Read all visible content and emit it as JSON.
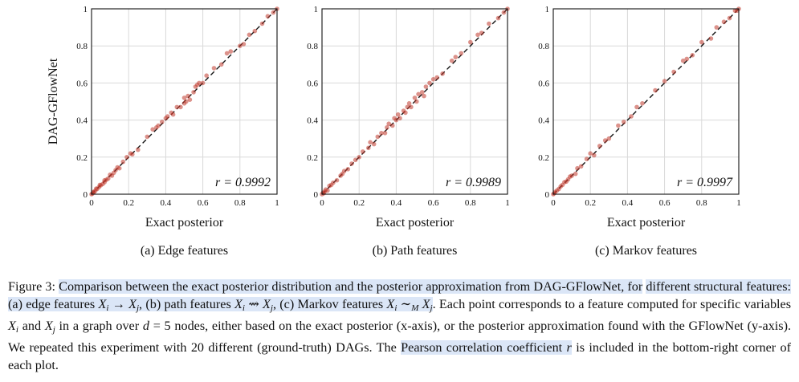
{
  "chart_data": [
    {
      "type": "scatter",
      "caption": "(a) Edge features",
      "xlabel": "Exact posterior",
      "ylabel": "DAG-GFlowNet",
      "xlim": [
        0,
        1
      ],
      "ylim": [
        0,
        1
      ],
      "x_ticks": [
        "0",
        "0.2",
        "0.4",
        "0.6",
        "0.8",
        "1"
      ],
      "y_ticks": [
        "0",
        "0.2",
        "0.4",
        "0.6",
        "0.8",
        "1"
      ],
      "grid": true,
      "r_label": "r = 0.9992",
      "color": "#c0392b",
      "points": [
        [
          0.0,
          0.0
        ],
        [
          0.005,
          0.004
        ],
        [
          0.01,
          0.012
        ],
        [
          0.012,
          0.01
        ],
        [
          0.02,
          0.018
        ],
        [
          0.025,
          0.03
        ],
        [
          0.03,
          0.028
        ],
        [
          0.04,
          0.038
        ],
        [
          0.045,
          0.05
        ],
        [
          0.05,
          0.048
        ],
        [
          0.06,
          0.055
        ],
        [
          0.07,
          0.075
        ],
        [
          0.08,
          0.078
        ],
        [
          0.09,
          0.085
        ],
        [
          0.1,
          0.105
        ],
        [
          0.11,
          0.1
        ],
        [
          0.12,
          0.115
        ],
        [
          0.13,
          0.13
        ],
        [
          0.14,
          0.145
        ],
        [
          0.15,
          0.14
        ],
        [
          0.17,
          0.175
        ],
        [
          0.19,
          0.2
        ],
        [
          0.21,
          0.22
        ],
        [
          0.22,
          0.215
        ],
        [
          0.25,
          0.24
        ],
        [
          0.3,
          0.31
        ],
        [
          0.33,
          0.35
        ],
        [
          0.35,
          0.36
        ],
        [
          0.36,
          0.37
        ],
        [
          0.38,
          0.39
        ],
        [
          0.4,
          0.41
        ],
        [
          0.41,
          0.42
        ],
        [
          0.43,
          0.44
        ],
        [
          0.44,
          0.43
        ],
        [
          0.46,
          0.47
        ],
        [
          0.48,
          0.47
        ],
        [
          0.5,
          0.49
        ],
        [
          0.5,
          0.52
        ],
        [
          0.51,
          0.5
        ],
        [
          0.52,
          0.53
        ],
        [
          0.53,
          0.51
        ],
        [
          0.55,
          0.55
        ],
        [
          0.56,
          0.58
        ],
        [
          0.57,
          0.59
        ],
        [
          0.58,
          0.6
        ],
        [
          0.6,
          0.6
        ],
        [
          0.62,
          0.64
        ],
        [
          0.66,
          0.68
        ],
        [
          0.7,
          0.7
        ],
        [
          0.73,
          0.76
        ],
        [
          0.75,
          0.77
        ],
        [
          0.8,
          0.8
        ],
        [
          0.82,
          0.81
        ],
        [
          0.85,
          0.86
        ],
        [
          0.88,
          0.88
        ],
        [
          0.92,
          0.92
        ],
        [
          0.95,
          0.96
        ],
        [
          0.98,
          0.98
        ],
        [
          1.0,
          1.0
        ],
        [
          0.07,
          0.065
        ]
      ]
    },
    {
      "type": "scatter",
      "caption": "(b) Path features",
      "xlabel": "Exact posterior",
      "ylabel": "",
      "xlim": [
        0,
        1
      ],
      "ylim": [
        0,
        1
      ],
      "x_ticks": [
        "0",
        "0.2",
        "0.4",
        "0.6",
        "0.8",
        "1"
      ],
      "y_ticks": [
        "0",
        "0.2",
        "0.4",
        "0.6",
        "0.8",
        "1"
      ],
      "grid": true,
      "r_label": "r = 0.9989",
      "color": "#c0392b",
      "points": [
        [
          0.0,
          0.0
        ],
        [
          0.005,
          0.008
        ],
        [
          0.01,
          0.005
        ],
        [
          0.015,
          0.015
        ],
        [
          0.02,
          0.025
        ],
        [
          0.03,
          0.02
        ],
        [
          0.04,
          0.045
        ],
        [
          0.05,
          0.05
        ],
        [
          0.06,
          0.062
        ],
        [
          0.08,
          0.075
        ],
        [
          0.1,
          0.1
        ],
        [
          0.12,
          0.125
        ],
        [
          0.14,
          0.135
        ],
        [
          0.16,
          0.165
        ],
        [
          0.18,
          0.185
        ],
        [
          0.2,
          0.2
        ],
        [
          0.22,
          0.23
        ],
        [
          0.25,
          0.25
        ],
        [
          0.28,
          0.27
        ],
        [
          0.3,
          0.31
        ],
        [
          0.32,
          0.33
        ],
        [
          0.34,
          0.33
        ],
        [
          0.35,
          0.36
        ],
        [
          0.36,
          0.38
        ],
        [
          0.38,
          0.37
        ],
        [
          0.39,
          0.41
        ],
        [
          0.4,
          0.4
        ],
        [
          0.41,
          0.43
        ],
        [
          0.42,
          0.41
        ],
        [
          0.44,
          0.45
        ],
        [
          0.45,
          0.44
        ],
        [
          0.47,
          0.49
        ],
        [
          0.48,
          0.47
        ],
        [
          0.5,
          0.52
        ],
        [
          0.51,
          0.5
        ],
        [
          0.52,
          0.54
        ],
        [
          0.54,
          0.55
        ],
        [
          0.56,
          0.58
        ],
        [
          0.58,
          0.6
        ],
        [
          0.6,
          0.62
        ],
        [
          0.62,
          0.63
        ],
        [
          0.65,
          0.65
        ],
        [
          0.7,
          0.72
        ],
        [
          0.72,
          0.74
        ],
        [
          0.75,
          0.76
        ],
        [
          0.8,
          0.82
        ],
        [
          0.84,
          0.86
        ],
        [
          0.86,
          0.87
        ],
        [
          0.9,
          0.92
        ],
        [
          0.95,
          0.95
        ],
        [
          0.98,
          0.98
        ],
        [
          1.0,
          1.0
        ],
        [
          0.11,
          0.11
        ],
        [
          0.26,
          0.28
        ],
        [
          0.46,
          0.47
        ],
        [
          0.55,
          0.53
        ]
      ]
    },
    {
      "type": "scatter",
      "caption": "(c) Markov features",
      "xlabel": "Exact posterior",
      "ylabel": "",
      "xlim": [
        0,
        1
      ],
      "ylim": [
        0,
        1
      ],
      "x_ticks": [
        "0",
        "0.2",
        "0.4",
        "0.6",
        "0.8",
        "1"
      ],
      "y_ticks": [
        "0",
        "0.2",
        "0.4",
        "0.6",
        "0.8",
        "1"
      ],
      "grid": true,
      "r_label": "r = 0.9997",
      "color": "#c0392b",
      "points": [
        [
          0.0,
          0.0
        ],
        [
          0.005,
          0.005
        ],
        [
          0.01,
          0.012
        ],
        [
          0.02,
          0.02
        ],
        [
          0.03,
          0.028
        ],
        [
          0.04,
          0.042
        ],
        [
          0.05,
          0.05
        ],
        [
          0.06,
          0.065
        ],
        [
          0.07,
          0.068
        ],
        [
          0.08,
          0.08
        ],
        [
          0.09,
          0.095
        ],
        [
          0.1,
          0.1
        ],
        [
          0.12,
          0.11
        ],
        [
          0.13,
          0.14
        ],
        [
          0.15,
          0.15
        ],
        [
          0.18,
          0.19
        ],
        [
          0.2,
          0.22
        ],
        [
          0.22,
          0.21
        ],
        [
          0.25,
          0.26
        ],
        [
          0.28,
          0.29
        ],
        [
          0.3,
          0.3
        ],
        [
          0.35,
          0.37
        ],
        [
          0.38,
          0.39
        ],
        [
          0.42,
          0.42
        ],
        [
          0.45,
          0.47
        ],
        [
          0.48,
          0.49
        ],
        [
          0.55,
          0.56
        ],
        [
          0.6,
          0.61
        ],
        [
          0.65,
          0.66
        ],
        [
          0.7,
          0.72
        ],
        [
          0.72,
          0.73
        ],
        [
          0.75,
          0.75
        ],
        [
          0.8,
          0.82
        ],
        [
          0.85,
          0.84
        ],
        [
          0.88,
          0.9
        ],
        [
          0.92,
          0.93
        ],
        [
          0.95,
          0.95
        ],
        [
          0.98,
          0.99
        ],
        [
          1.0,
          1.0
        ],
        [
          0.99,
          0.99
        ]
      ]
    }
  ],
  "caption": {
    "figure_label": "Figure 3:",
    "line1_hl": "Comparison between the exact posterior distribution and the posterior approximation from DAG-GFlowNet, for",
    "line2_hl": "different structural features: (a) edge features ",
    "line2_m1a": "X",
    "line2_m1b": "i",
    "line2_arrow1": " → ",
    "line2_m1c": "X",
    "line2_m1d": "j",
    "line2_t2": ", (b) path features ",
    "line2_arrow2": " ⇝ ",
    "line2_t3": ", (c) Markov features ",
    "line2_sim": " ∼",
    "line2_simsub": "M",
    "line2_t4": ". Each",
    "line3": "point corresponds to a feature computed for specific variables ",
    "line3_and": " and ",
    "line3_b": " in a graph over ",
    "line3_d": "d",
    "line3_c": " = 5 nodes, either based on the",
    "line4": "exact posterior (x-axis), or the posterior approximation found with the GFlowNet (y-axis). We repeated this experiment with",
    "line5a": "20 different (ground-truth) DAGs. The ",
    "line5_hl": "Pearson correlation coefficient ",
    "line5_r": "r",
    "line5b": " is included in the bottom-right corner of each plot."
  }
}
